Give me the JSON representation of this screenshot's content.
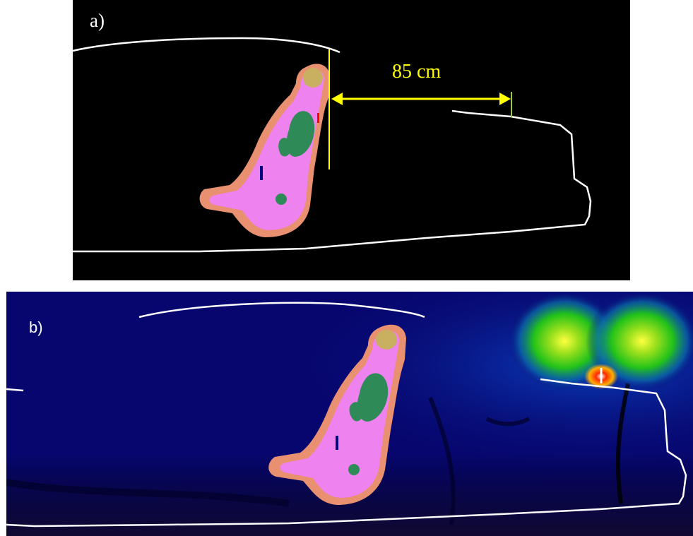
{
  "panel_a": {
    "label": "a)",
    "distance_label": "85 cm",
    "colors": {
      "background": "#000000",
      "outline": "#ffffff",
      "dimension": "#ffff00"
    }
  },
  "panel_b": {
    "label": "b)",
    "colors": {
      "background": "#07066e",
      "field_glow": "#22c21a",
      "source_hot": "#ff2a00",
      "outline": "#ffffff"
    }
  },
  "figure_colors": {
    "body_skin": "#e89070",
    "body_tissue": "#ee82ee",
    "organ": "#2e8b57",
    "brain": "#c8b060"
  }
}
